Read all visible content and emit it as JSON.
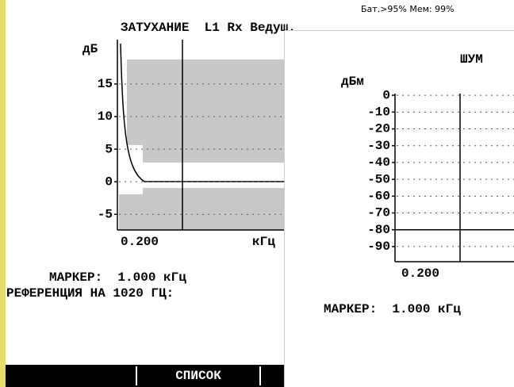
{
  "status": "Бат.>95% Мем: 99%",
  "attenuation": {
    "title": "ЗАТУХАНИЕ  L1 Rx Ведущ.",
    "y_label": "дБ",
    "ylim": [
      -7.4,
      21.8
    ],
    "yticks": [
      15,
      10,
      5,
      0,
      -5
    ],
    "x_start": "0.200",
    "x_unit": "кГц",
    "marker": "МАРКЕР:  1.000 кГц",
    "reference": "РЕФЕРЕНЦИЯ НА 1020 ГЦ:"
  },
  "noise": {
    "title": "ШУМ",
    "y_label": "дБм",
    "ylim": [
      -99,
      1
    ],
    "yticks": [
      0,
      -10,
      -20,
      -30,
      -40,
      -50,
      -60,
      -70,
      -80,
      -90
    ],
    "x_start": "0.200",
    "marker": "МАРКЕР:  1.000 кГц"
  },
  "softkeys": [
    "СПИСОК"
  ]
}
